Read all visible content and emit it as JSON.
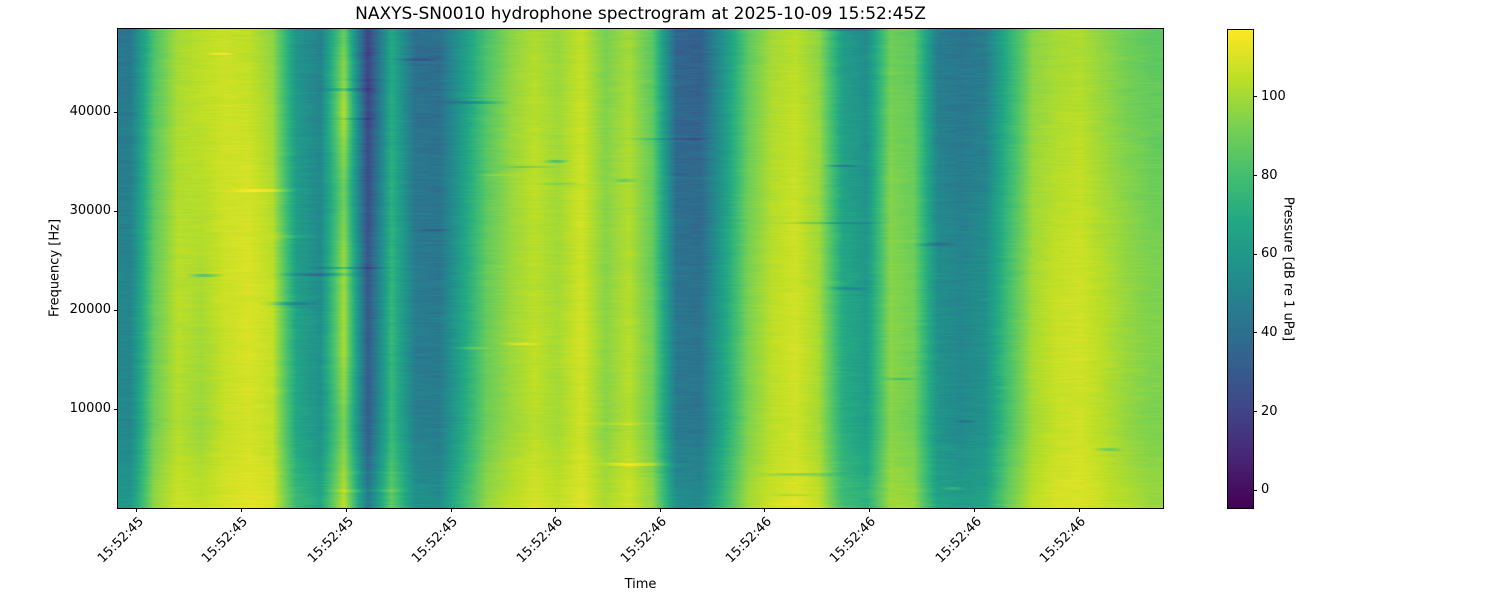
{
  "figure": {
    "background": "#ffffff",
    "border_color": "#000000"
  },
  "chart_data": {
    "type": "heatmap",
    "title": "NAXYS-SN0010 hydrophone spectrogram at 2025-10-09 15:52:45Z",
    "xlabel": "Time",
    "ylabel": "Frequency [Hz]",
    "colorbar_label": "Pressure [dB re 1 uPa]",
    "colormap": "viridis",
    "vmin": -4.5,
    "vmax": 117,
    "freq_range_hz": [
      0,
      48400
    ],
    "y_ticks": [
      {
        "value": 40000,
        "label": "40000"
      },
      {
        "value": 30000,
        "label": "30000"
      },
      {
        "value": 20000,
        "label": "20000"
      },
      {
        "value": 10000,
        "label": "10000"
      }
    ],
    "x_ticks": [
      {
        "pos": 0.018,
        "label": "15:52:45"
      },
      {
        "pos": 0.118,
        "label": "15:52:45"
      },
      {
        "pos": 0.219,
        "label": "15:52:45"
      },
      {
        "pos": 0.319,
        "label": "15:52:45"
      },
      {
        "pos": 0.419,
        "label": "15:52:46"
      },
      {
        "pos": 0.519,
        "label": "15:52:46"
      },
      {
        "pos": 0.619,
        "label": "15:52:46"
      },
      {
        "pos": 0.719,
        "label": "15:52:46"
      },
      {
        "pos": 0.82,
        "label": "15:52:46"
      },
      {
        "pos": 0.92,
        "label": "15:52:46"
      }
    ],
    "colorbar_ticks": [
      {
        "value": 100,
        "label": "100"
      },
      {
        "value": 80,
        "label": "80"
      },
      {
        "value": 60,
        "label": "60"
      },
      {
        "value": 40,
        "label": "40"
      },
      {
        "value": 20,
        "label": "20"
      },
      {
        "value": 0,
        "label": "0"
      }
    ],
    "viridis_stops": [
      [
        0.0,
        "#440154"
      ],
      [
        0.1,
        "#482475"
      ],
      [
        0.2,
        "#414487"
      ],
      [
        0.3,
        "#355f8d"
      ],
      [
        0.4,
        "#2a788e"
      ],
      [
        0.5,
        "#21918c"
      ],
      [
        0.6,
        "#22a884"
      ],
      [
        0.7,
        "#44bf70"
      ],
      [
        0.8,
        "#7ad151"
      ],
      [
        0.9,
        "#bddf26"
      ],
      [
        1.0,
        "#fde725"
      ]
    ],
    "freq_bins_hz": [
      48400,
      40000,
      32000,
      24000,
      16000,
      8000,
      0
    ],
    "values_db": [
      [
        44,
        82,
        100,
        104,
        106,
        104,
        96,
        58,
        48,
        88,
        18,
        68,
        40,
        40,
        60,
        82,
        95,
        102,
        98,
        106,
        92,
        100,
        85,
        34,
        32,
        58,
        86,
        100,
        104,
        96,
        62,
        54,
        90,
        86,
        46,
        42,
        46,
        72,
        95,
        100,
        102,
        96,
        90,
        86
      ],
      [
        46,
        85,
        102,
        105,
        108,
        107,
        99,
        60,
        50,
        104,
        21,
        70,
        42,
        41,
        62,
        84,
        97,
        104,
        99,
        107,
        94,
        102,
        87,
        36,
        34,
        60,
        88,
        102,
        106,
        98,
        64,
        56,
        92,
        88,
        48,
        44,
        48,
        74,
        97,
        102,
        104,
        98,
        92,
        88
      ],
      [
        48,
        86,
        103,
        103,
        108,
        109,
        102,
        62,
        52,
        90,
        24,
        72,
        44,
        42,
        64,
        86,
        98,
        105,
        100,
        108,
        95,
        103,
        88,
        39,
        37,
        62,
        90,
        103,
        107,
        99,
        66,
        58,
        94,
        89,
        51,
        47,
        51,
        77,
        99,
        104,
        106,
        100,
        95,
        90
      ],
      [
        50,
        88,
        104,
        102,
        108,
        110,
        105,
        64,
        54,
        100,
        28,
        75,
        46,
        44,
        66,
        88,
        98,
        104,
        100,
        108,
        95,
        103,
        88,
        42,
        40,
        65,
        92,
        104,
        108,
        100,
        68,
        60,
        95,
        90,
        55,
        50,
        55,
        80,
        100,
        106,
        108,
        103,
        97,
        93
      ],
      [
        51,
        89,
        104,
        100,
        107,
        110,
        106,
        66,
        56,
        102,
        30,
        76,
        47,
        45,
        67,
        89,
        99,
        105,
        101,
        109,
        96,
        104,
        90,
        44,
        42,
        67,
        93,
        105,
        109,
        101,
        70,
        62,
        96,
        91,
        57,
        52,
        57,
        82,
        101,
        107,
        109,
        104,
        98,
        94
      ],
      [
        52,
        90,
        103,
        98,
        106,
        109,
        105,
        67,
        57,
        92,
        32,
        77,
        48,
        46,
        68,
        90,
        98,
        104,
        100,
        108,
        95,
        103,
        89,
        45,
        43,
        68,
        93,
        104,
        108,
        100,
        71,
        63,
        95,
        90,
        58,
        53,
        58,
        82,
        100,
        106,
        108,
        103,
        97,
        93
      ],
      [
        60,
        98,
        108,
        106,
        110,
        112,
        110,
        78,
        68,
        106,
        45,
        88,
        58,
        56,
        78,
        98,
        105,
        110,
        106,
        111,
        102,
        108,
        98,
        56,
        54,
        78,
        100,
        108,
        111,
        106,
        80,
        74,
        100,
        98,
        66,
        62,
        66,
        90,
        105,
        110,
        111,
        107,
        103,
        99
      ]
    ],
    "texture": {
      "seed": 7,
      "scanline_amp_db": 2.2,
      "dark_dashes": 26,
      "bright_dashes": 12
    }
  }
}
